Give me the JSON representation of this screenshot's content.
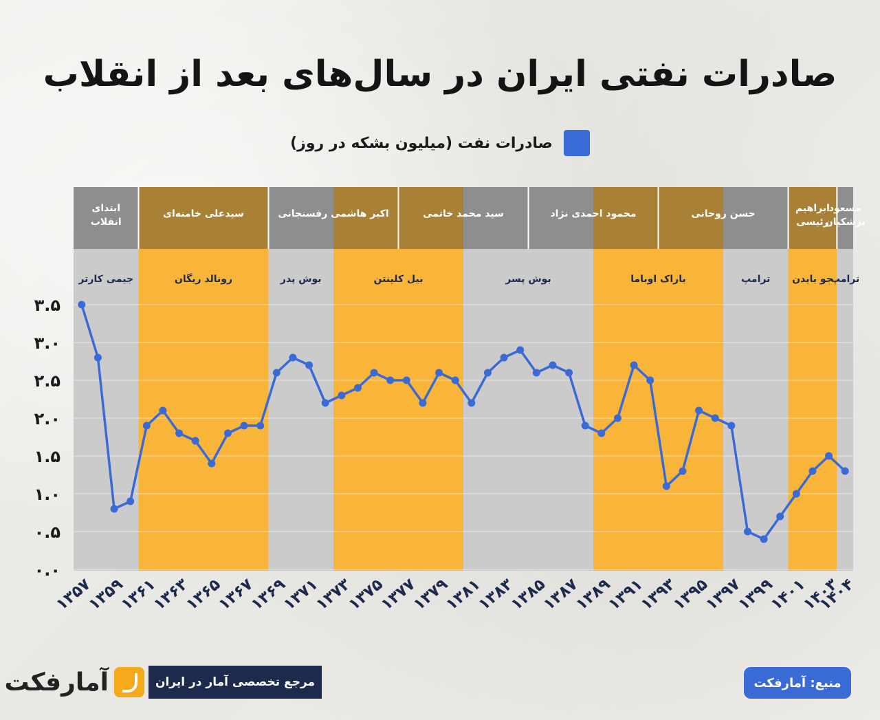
{
  "title": "صادرات نفتی ایران در سال‌های بعد از انقلاب",
  "legend": {
    "label": "صادرات نفت (میلیون بشکه در روز)",
    "color": "#3a6ad6"
  },
  "colors": {
    "orange_band": "#f9b43a",
    "gray_band": "#cbcbcb",
    "iran_gray": "#8e8e8e",
    "iran_brown": "#a88136",
    "line": "#3a6ad6",
    "axis_text": "#1d2a4d"
  },
  "chart_data": {
    "type": "line",
    "title": "صادرات نفتی ایران در سال‌های بعد از انقلاب",
    "xlabel": "",
    "ylabel": "",
    "series": [
      {
        "name": "صادرات نفت (میلیون بشکه در روز)",
        "x": [
          1357,
          1358,
          1359,
          1360,
          1361,
          1362,
          1363,
          1364,
          1365,
          1366,
          1367,
          1368,
          1369,
          1370,
          1371,
          1372,
          1373,
          1374,
          1375,
          1376,
          1377,
          1378,
          1379,
          1380,
          1381,
          1382,
          1383,
          1384,
          1385,
          1386,
          1387,
          1388,
          1389,
          1390,
          1391,
          1392,
          1393,
          1394,
          1395,
          1396,
          1397,
          1398,
          1399,
          1400,
          1401,
          1402,
          1403,
          1404
        ],
        "values": [
          3.5,
          2.8,
          0.8,
          0.9,
          1.9,
          2.1,
          1.8,
          1.7,
          1.4,
          1.8,
          1.9,
          1.9,
          2.6,
          2.8,
          2.7,
          2.2,
          2.3,
          2.4,
          2.6,
          2.5,
          2.5,
          2.2,
          2.6,
          2.5,
          2.2,
          2.6,
          2.8,
          2.9,
          2.6,
          2.7,
          2.6,
          1.9,
          1.8,
          2.0,
          2.7,
          2.5,
          1.1,
          1.3,
          2.1,
          2.0,
          1.9,
          0.5,
          0.4,
          0.7,
          1.0,
          1.3,
          1.5,
          1.3
        ]
      }
    ],
    "ylim": [
      0,
      3.5
    ],
    "y_ticks": [
      "۰.۰",
      "۰.۵",
      "۱.۰",
      "۱.۵",
      "۲.۰",
      "۲.۵",
      "۳.۰",
      "۳.۵"
    ],
    "y_tick_values": [
      0,
      0.5,
      1.0,
      1.5,
      2.0,
      2.5,
      3.0,
      3.5
    ],
    "x_ticks": [
      {
        "year": 1357,
        "label": "۱۳۵۷"
      },
      {
        "year": 1359,
        "label": "۱۳۵۹"
      },
      {
        "year": 1361,
        "label": "۱۳۶۱"
      },
      {
        "year": 1363,
        "label": "۱۳۶۳"
      },
      {
        "year": 1365,
        "label": "۱۳۶۵"
      },
      {
        "year": 1367,
        "label": "۱۳۶۷"
      },
      {
        "year": 1369,
        "label": "۱۳۶۹"
      },
      {
        "year": 1371,
        "label": "۱۳۷۱"
      },
      {
        "year": 1373,
        "label": "۱۳۷۳"
      },
      {
        "year": 1375,
        "label": "۱۳۷۵"
      },
      {
        "year": 1377,
        "label": "۱۳۷۷"
      },
      {
        "year": 1379,
        "label": "۱۳۷۹"
      },
      {
        "year": 1381,
        "label": "۱۳۸۱"
      },
      {
        "year": 1383,
        "label": "۱۳۸۳"
      },
      {
        "year": 1385,
        "label": "۱۳۸۵"
      },
      {
        "year": 1387,
        "label": "۱۳۸۷"
      },
      {
        "year": 1389,
        "label": "۱۳۸۹"
      },
      {
        "year": 1391,
        "label": "۱۳۹۱"
      },
      {
        "year": 1393,
        "label": "۱۳۹۳"
      },
      {
        "year": 1395,
        "label": "۱۳۹۵"
      },
      {
        "year": 1397,
        "label": "۱۳۹۷"
      },
      {
        "year": 1399,
        "label": "۱۳۹۹"
      },
      {
        "year": 1401,
        "label": "۱۴۰۱"
      },
      {
        "year": 1403,
        "label": "۱۴۰۳"
      },
      {
        "year": 1404,
        "label": "۱۴۰۴"
      }
    ],
    "grid": true,
    "us_presidents": [
      {
        "label": "جیمی کارتر",
        "from": 1356.5,
        "to": 1360.5,
        "color": "gray"
      },
      {
        "label": "رونالد ریگان",
        "from": 1360.5,
        "to": 1368.5,
        "color": "orange"
      },
      {
        "label": "بوش پدر",
        "from": 1368.5,
        "to": 1372.5,
        "color": "gray"
      },
      {
        "label": "بیل کلینتن",
        "from": 1372.5,
        "to": 1380.5,
        "color": "orange"
      },
      {
        "label": "بوش پسر",
        "from": 1380.5,
        "to": 1388.5,
        "color": "gray"
      },
      {
        "label": "باراک اوباما",
        "from": 1388.5,
        "to": 1396.5,
        "color": "orange"
      },
      {
        "label": "ترامپ",
        "from": 1396.5,
        "to": 1400.5,
        "color": "gray"
      },
      {
        "label": "جو بایدن",
        "from": 1400.5,
        "to": 1403.5,
        "color": "orange"
      },
      {
        "label": "ترامپ",
        "from": 1403.5,
        "to": 1404.5,
        "color": "gray"
      }
    ],
    "iran_leaders": [
      {
        "label": "ابتدای انقلاب",
        "from": 1356.5,
        "to": 1360.5,
        "color": "gray"
      },
      {
        "label": "سیدعلی خامنه‌ای",
        "from": 1360.5,
        "to": 1368.5,
        "color": "brown"
      },
      {
        "label": "اکبر هاشمی رفسنجانی",
        "from": 1368.5,
        "to": 1376.5,
        "color": "split"
      },
      {
        "label": "سید محمد خاتمی",
        "from": 1376.5,
        "to": 1384.5,
        "color": "split"
      },
      {
        "label": "محمود احمدی نژاد",
        "from": 1384.5,
        "to": 1392.5,
        "color": "split"
      },
      {
        "label": "حسن روحانی",
        "from": 1392.5,
        "to": 1400.5,
        "color": "split"
      },
      {
        "label": "ابراهیم رئیسی",
        "from": 1400.5,
        "to": 1403.5,
        "color": "brown"
      },
      {
        "label": "مسعود پزشکیان",
        "from": 1403.5,
        "to": 1404.5,
        "color": "gray"
      }
    ]
  },
  "footer": {
    "source": "منبع: آمارفکت",
    "reference": "مرجع تخصصی آمار در ایران",
    "logo": "آمارفکت"
  }
}
